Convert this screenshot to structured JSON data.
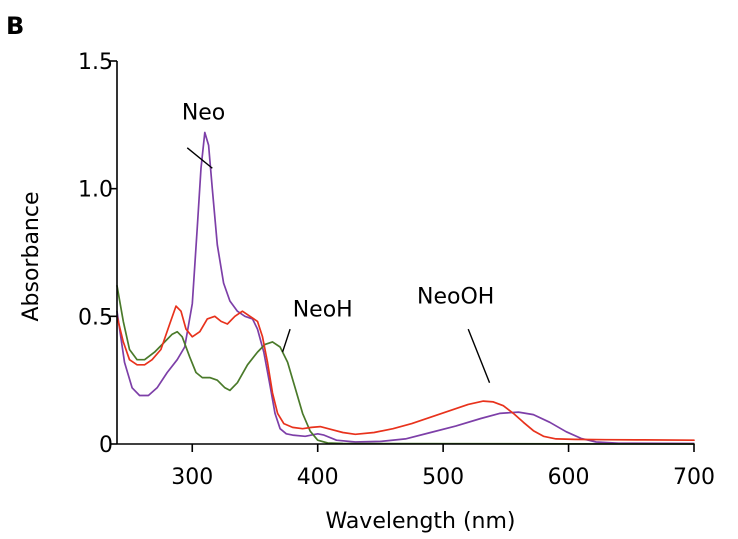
{
  "panel_label": "B",
  "chart_data": {
    "type": "line",
    "title": "",
    "xlabel": "Wavelength (nm)",
    "ylabel": "Absorbance",
    "xlim": [
      240,
      700
    ],
    "ylim": [
      0,
      1.5
    ],
    "x_ticks": [
      300,
      400,
      500,
      600,
      700
    ],
    "x_tick_labels": [
      "300",
      "400",
      "500",
      "600",
      "700"
    ],
    "y_ticks": [
      0,
      0.5,
      1.0,
      1.5
    ],
    "y_tick_labels": [
      "0",
      "0.5",
      "1.0",
      "1.5"
    ],
    "grid": false,
    "legend": "none",
    "series": [
      {
        "name": "Neo",
        "color": "#7d3fa8",
        "points": [
          [
            240,
            0.52
          ],
          [
            246,
            0.32
          ],
          [
            252,
            0.22
          ],
          [
            258,
            0.19
          ],
          [
            265,
            0.19
          ],
          [
            272,
            0.22
          ],
          [
            280,
            0.28
          ],
          [
            288,
            0.33
          ],
          [
            294,
            0.38
          ],
          [
            300,
            0.55
          ],
          [
            304,
            0.85
          ],
          [
            307,
            1.08
          ],
          [
            310,
            1.22
          ],
          [
            313,
            1.17
          ],
          [
            316,
            1.0
          ],
          [
            320,
            0.78
          ],
          [
            325,
            0.63
          ],
          [
            330,
            0.56
          ],
          [
            336,
            0.52
          ],
          [
            342,
            0.5
          ],
          [
            348,
            0.49
          ],
          [
            352,
            0.45
          ],
          [
            357,
            0.36
          ],
          [
            362,
            0.23
          ],
          [
            366,
            0.12
          ],
          [
            370,
            0.06
          ],
          [
            375,
            0.04
          ],
          [
            380,
            0.035
          ],
          [
            390,
            0.03
          ],
          [
            400,
            0.04
          ],
          [
            405,
            0.035
          ],
          [
            415,
            0.015
          ],
          [
            430,
            0.008
          ],
          [
            450,
            0.01
          ],
          [
            470,
            0.02
          ],
          [
            490,
            0.045
          ],
          [
            510,
            0.07
          ],
          [
            530,
            0.1
          ],
          [
            545,
            0.12
          ],
          [
            560,
            0.125
          ],
          [
            572,
            0.115
          ],
          [
            585,
            0.085
          ],
          [
            598,
            0.048
          ],
          [
            610,
            0.022
          ],
          [
            622,
            0.008
          ],
          [
            640,
            0.003
          ],
          [
            700,
            0.002
          ]
        ]
      },
      {
        "name": "NeoH",
        "color": "#4a7a2a",
        "points": [
          [
            240,
            0.62
          ],
          [
            245,
            0.48
          ],
          [
            250,
            0.37
          ],
          [
            256,
            0.33
          ],
          [
            262,
            0.33
          ],
          [
            270,
            0.36
          ],
          [
            278,
            0.4
          ],
          [
            284,
            0.43
          ],
          [
            288,
            0.44
          ],
          [
            292,
            0.42
          ],
          [
            298,
            0.34
          ],
          [
            303,
            0.28
          ],
          [
            308,
            0.26
          ],
          [
            314,
            0.26
          ],
          [
            320,
            0.25
          ],
          [
            326,
            0.22
          ],
          [
            330,
            0.21
          ],
          [
            336,
            0.24
          ],
          [
            344,
            0.31
          ],
          [
            352,
            0.36
          ],
          [
            358,
            0.39
          ],
          [
            364,
            0.4
          ],
          [
            370,
            0.38
          ],
          [
            376,
            0.32
          ],
          [
            382,
            0.22
          ],
          [
            388,
            0.12
          ],
          [
            394,
            0.05
          ],
          [
            400,
            0.015
          ],
          [
            408,
            0.004
          ],
          [
            420,
            0.002
          ],
          [
            700,
            0.0
          ]
        ]
      },
      {
        "name": "NeoOH",
        "color": "#e8321c",
        "points": [
          [
            240,
            0.5
          ],
          [
            245,
            0.4
          ],
          [
            250,
            0.33
          ],
          [
            256,
            0.31
          ],
          [
            262,
            0.31
          ],
          [
            268,
            0.33
          ],
          [
            275,
            0.37
          ],
          [
            282,
            0.47
          ],
          [
            287,
            0.54
          ],
          [
            291,
            0.52
          ],
          [
            295,
            0.45
          ],
          [
            300,
            0.42
          ],
          [
            306,
            0.44
          ],
          [
            312,
            0.49
          ],
          [
            318,
            0.5
          ],
          [
            323,
            0.48
          ],
          [
            328,
            0.47
          ],
          [
            334,
            0.5
          ],
          [
            340,
            0.52
          ],
          [
            346,
            0.5
          ],
          [
            352,
            0.48
          ],
          [
            356,
            0.42
          ],
          [
            360,
            0.32
          ],
          [
            364,
            0.2
          ],
          [
            368,
            0.12
          ],
          [
            373,
            0.08
          ],
          [
            380,
            0.065
          ],
          [
            388,
            0.06
          ],
          [
            395,
            0.065
          ],
          [
            402,
            0.068
          ],
          [
            410,
            0.058
          ],
          [
            420,
            0.045
          ],
          [
            430,
            0.038
          ],
          [
            445,
            0.045
          ],
          [
            460,
            0.06
          ],
          [
            475,
            0.08
          ],
          [
            490,
            0.105
          ],
          [
            505,
            0.13
          ],
          [
            520,
            0.155
          ],
          [
            532,
            0.168
          ],
          [
            540,
            0.165
          ],
          [
            548,
            0.15
          ],
          [
            556,
            0.12
          ],
          [
            564,
            0.085
          ],
          [
            572,
            0.052
          ],
          [
            580,
            0.03
          ],
          [
            590,
            0.02
          ],
          [
            605,
            0.018
          ],
          [
            630,
            0.017
          ],
          [
            660,
            0.016
          ],
          [
            700,
            0.015
          ]
        ]
      }
    ],
    "annotations": [
      {
        "text": "Neo",
        "text_at": [
          309,
          1.27
        ],
        "line_from": [
          296,
          1.16
        ],
        "line_to": [
          316,
          1.08
        ]
      },
      {
        "text": "NeoH",
        "text_at": [
          404,
          0.5
        ],
        "line_from": [
          378,
          0.45
        ],
        "line_to": [
          372,
          0.36
        ]
      },
      {
        "text": "NeoOH",
        "text_at": [
          510,
          0.55
        ],
        "line_from": [
          520,
          0.45
        ],
        "line_to": [
          537,
          0.24
        ]
      }
    ]
  }
}
